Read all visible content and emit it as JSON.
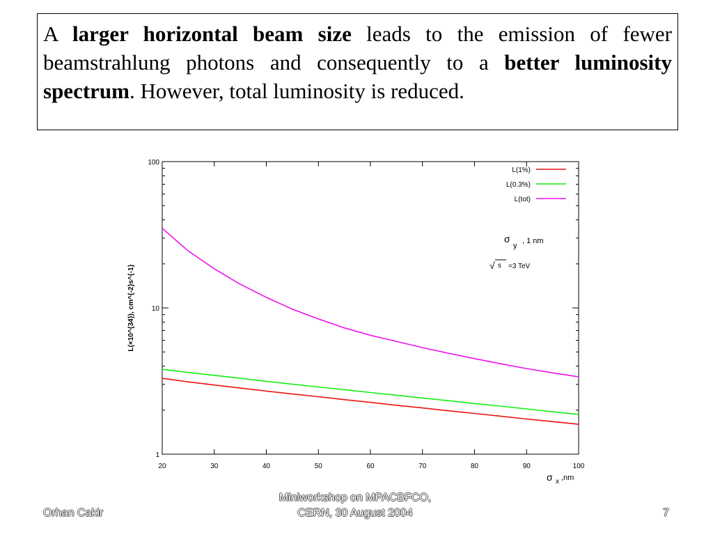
{
  "text_box": {
    "part1": "A ",
    "bold1": "larger horizontal beam size",
    "part2": " leads to the emission of fewer beamstrahlung photons and consequently to a ",
    "bold2": "better luminosity spectrum",
    "part3": ". However, total luminosity is reduced."
  },
  "footer": {
    "author": "Orhan Cakir",
    "event_line1": "Miniworkshop on MPACBFCO,",
    "event_line2": "CERN, 30 August 2004",
    "page": "7"
  },
  "chart_data": {
    "type": "line",
    "ylabel": "L(×10^{34}), cm^{-2}s^{-1}",
    "xlabel_symbol": "σ",
    "xlabel_sub": "x",
    "xlabel_unit": ",nm",
    "annotation_sigma_y_symbol": "σ",
    "annotation_sigma_y_sub": "y",
    "annotation_sigma_y_value": ", 1 nm",
    "annotation_sqrt_s_symbol": "√",
    "annotation_sqrt_s_var": "s",
    "annotation_sqrt_s_value": "=3 TeV",
    "xlim": [
      20,
      100
    ],
    "ylim": [
      1,
      100
    ],
    "y_scale": "log",
    "x_ticks": [
      20,
      30,
      40,
      50,
      60,
      70,
      80,
      90,
      100
    ],
    "y_ticks": [
      1,
      10,
      100
    ],
    "grid": false,
    "legend_position": "top-right",
    "x": [
      20,
      25,
      30,
      35,
      40,
      45,
      50,
      55,
      60,
      65,
      70,
      75,
      80,
      85,
      90,
      95,
      100
    ],
    "series": [
      {
        "name": "L(1%)",
        "color": "#ee1111",
        "values": [
          3.3,
          3.12,
          2.97,
          2.83,
          2.7,
          2.58,
          2.47,
          2.36,
          2.26,
          2.16,
          2.07,
          1.98,
          1.9,
          1.82,
          1.74,
          1.67,
          1.6
        ]
      },
      {
        "name": "L(0.3%)",
        "color": "#11ee11",
        "values": [
          3.8,
          3.62,
          3.46,
          3.3,
          3.15,
          3.01,
          2.88,
          2.76,
          2.64,
          2.53,
          2.42,
          2.32,
          2.22,
          2.13,
          2.04,
          1.95,
          1.87
        ]
      },
      {
        "name": "L(tot)",
        "color": "#ee11ee",
        "values": [
          35,
          24.5,
          18.5,
          14.5,
          11.8,
          9.8,
          8.4,
          7.3,
          6.5,
          5.9,
          5.35,
          4.9,
          4.5,
          4.15,
          3.85,
          3.6,
          3.38
        ]
      }
    ]
  }
}
